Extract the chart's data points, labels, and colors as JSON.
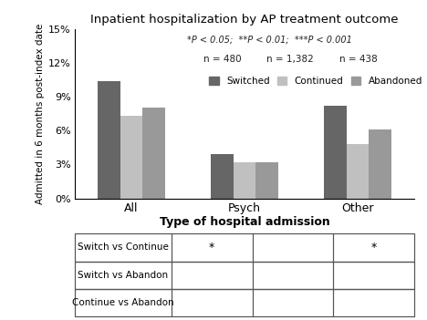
{
  "title": "Inpatient hospitalization by AP treatment outcome",
  "categories": [
    "All",
    "Psych",
    "Other"
  ],
  "series": {
    "Switched": [
      10.4,
      3.9,
      8.2
    ],
    "Continued": [
      7.3,
      3.2,
      4.8
    ],
    "Abandoned": [
      8.0,
      3.2,
      6.1
    ]
  },
  "colors": {
    "Switched": "#666666",
    "Continued": "#c0c0c0",
    "Abandoned": "#999999"
  },
  "ylabel": "Admitted in 6 months post-index date",
  "xlabel": "Type of hospital admission",
  "ylim": [
    0,
    15
  ],
  "yticks": [
    0,
    3,
    6,
    9,
    12,
    15
  ],
  "ytick_labels": [
    "0%",
    "3%",
    "6%",
    "9%",
    "12%",
    "15%"
  ],
  "n_labels": [
    "n = 480",
    "n = 1,382",
    "n = 438"
  ],
  "sig_note": "*P < 0.05;  **P < 0.01;  ***P < 0.001",
  "legend_labels": [
    "Switched",
    "Continued",
    "Abandoned"
  ],
  "table_rows": [
    "Switch vs Continue",
    "Switch vs Abandon",
    "Continue vs Abandon"
  ],
  "table_data": [
    [
      "*",
      "",
      "*"
    ],
    [
      "",
      "",
      ""
    ],
    [
      "",
      "",
      ""
    ]
  ],
  "background_color": "#ffffff"
}
